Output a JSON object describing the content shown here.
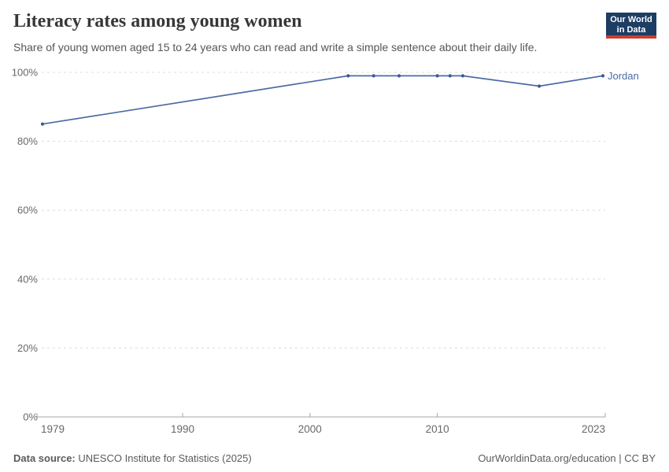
{
  "header": {
    "title": "Literacy rates among young women",
    "subtitle": "Share of young women aged 15 to 24 years who can read and write a simple sentence about their daily life."
  },
  "logo": {
    "line1": "Our World",
    "line2": "in Data",
    "bg_color": "#1d3d63",
    "accent_color": "#cf3b32"
  },
  "chart_data": {
    "type": "line",
    "title": "Literacy rates among young women",
    "xlabel": "",
    "ylabel": "",
    "xlim": [
      1979,
      2023
    ],
    "ylim": [
      0,
      100
    ],
    "x_ticks": [
      1979,
      1990,
      2000,
      2010,
      2023
    ],
    "y_ticks": [
      0,
      20,
      40,
      60,
      80,
      100
    ],
    "y_tick_suffix": "%",
    "grid": "horizontal-dashed",
    "legend_position": "end-of-line",
    "series": [
      {
        "name": "Jordan",
        "color": "#4d6ba5",
        "marker_color": "#3a5a94",
        "points": [
          {
            "x": 1979,
            "y": 85
          },
          {
            "x": 2003,
            "y": 99
          },
          {
            "x": 2005,
            "y": 99
          },
          {
            "x": 2007,
            "y": 99
          },
          {
            "x": 2010,
            "y": 99
          },
          {
            "x": 2011,
            "y": 99
          },
          {
            "x": 2012,
            "y": 99
          },
          {
            "x": 2018,
            "y": 96
          },
          {
            "x": 2023,
            "y": 99
          }
        ]
      }
    ]
  },
  "footer": {
    "source_label": "Data source:",
    "source_value": " UNESCO Institute for Statistics (2025)",
    "right_text": "OurWorldinData.org/education | CC BY"
  },
  "colors": {
    "title": "#373737",
    "subtitle": "#55565b",
    "tick_label": "#686868",
    "gridline": "#dcdcdc",
    "axis": "#a5a5a5",
    "footer_text": "#5b5b5b"
  }
}
